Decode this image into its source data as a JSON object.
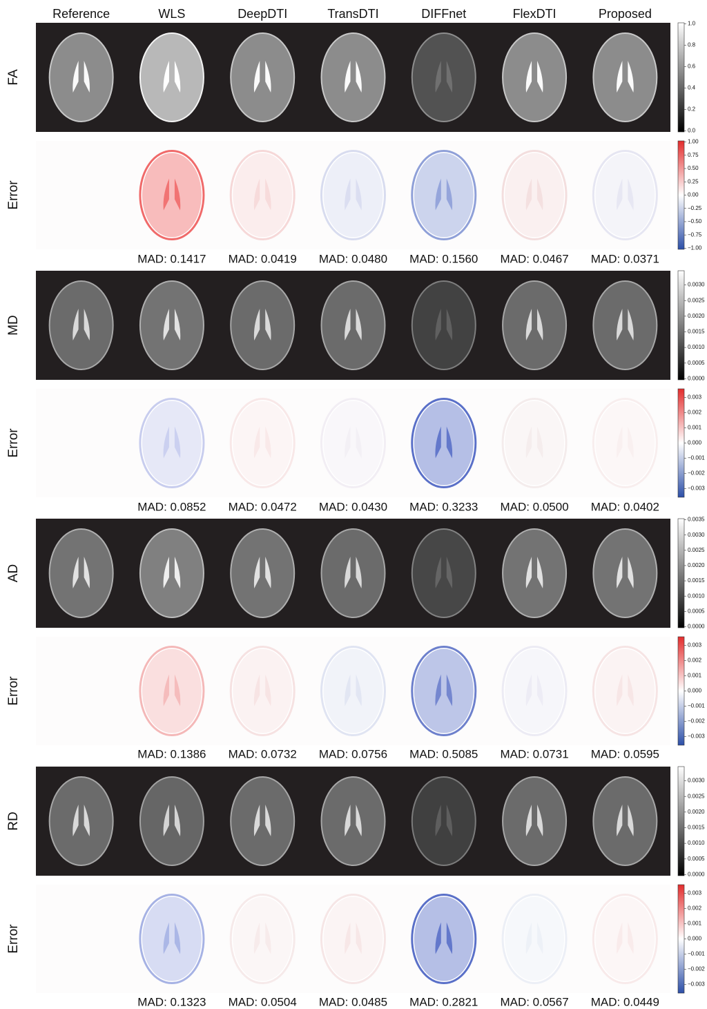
{
  "columns": [
    "Reference",
    "WLS",
    "DeepDTI",
    "TransDTI",
    "DIFFnet",
    "FlexDTI",
    "Proposed"
  ],
  "rows": [
    {
      "label": "FA",
      "colorbar_ticks": [
        "1.0",
        "0.8",
        "0.6",
        "0.4",
        "0.2",
        "0.0"
      ]
    },
    {
      "label": "Error",
      "colorbar_ticks": [
        "1.00",
        "0.75",
        "0.50",
        "0.25",
        "0.00",
        "−0.25",
        "−0.50",
        "−0.75",
        "−1.00"
      ],
      "mad": [
        "MAD: 0.1417",
        "MAD: 0.0419",
        "MAD: 0.0480",
        "MAD: 0.1560",
        "MAD: 0.0467",
        "MAD: 0.0371"
      ]
    },
    {
      "label": "MD",
      "colorbar_ticks": [
        "0.0030",
        "0.0025",
        "0.0020",
        "0.0015",
        "0.0010",
        "0.0005",
        "0.0000"
      ]
    },
    {
      "label": "Error",
      "colorbar_ticks": [
        "0.003",
        "0.002",
        "0.001",
        "0.000",
        "−0.001",
        "−0.002",
        "−0.003"
      ],
      "mad": [
        "MAD: 0.0852",
        "MAD: 0.0472",
        "MAD: 0.0430",
        "MAD: 0.3233",
        "MAD: 0.0500",
        "MAD: 0.0402"
      ]
    },
    {
      "label": "AD",
      "colorbar_ticks": [
        "0.0035",
        "0.0030",
        "0.0025",
        "0.0020",
        "0.0015",
        "0.0010",
        "0.0005",
        "0.0000"
      ]
    },
    {
      "label": "Error",
      "colorbar_ticks": [
        "0.003",
        "0.002",
        "0.001",
        "0.000",
        "−0.001",
        "−0.002",
        "−0.003"
      ],
      "mad": [
        "MAD: 0.1386",
        "MAD: 0.0732",
        "MAD: 0.0756",
        "MAD: 0.5085",
        "MAD: 0.0731",
        "MAD: 0.0595"
      ]
    },
    {
      "label": "RD",
      "colorbar_ticks": [
        "0.0030",
        "0.0025",
        "0.0020",
        "0.0015",
        "0.0010",
        "0.0005",
        "0.0000"
      ]
    },
    {
      "label": "Error",
      "colorbar_ticks": [
        "0.003",
        "0.002",
        "0.001",
        "0.000",
        "−0.001",
        "−0.002",
        "−0.003"
      ],
      "mad": [
        "MAD: 0.1323",
        "MAD: 0.0504",
        "MAD: 0.0485",
        "MAD: 0.2821",
        "MAD: 0.0567",
        "MAD: 0.0449"
      ]
    }
  ]
}
